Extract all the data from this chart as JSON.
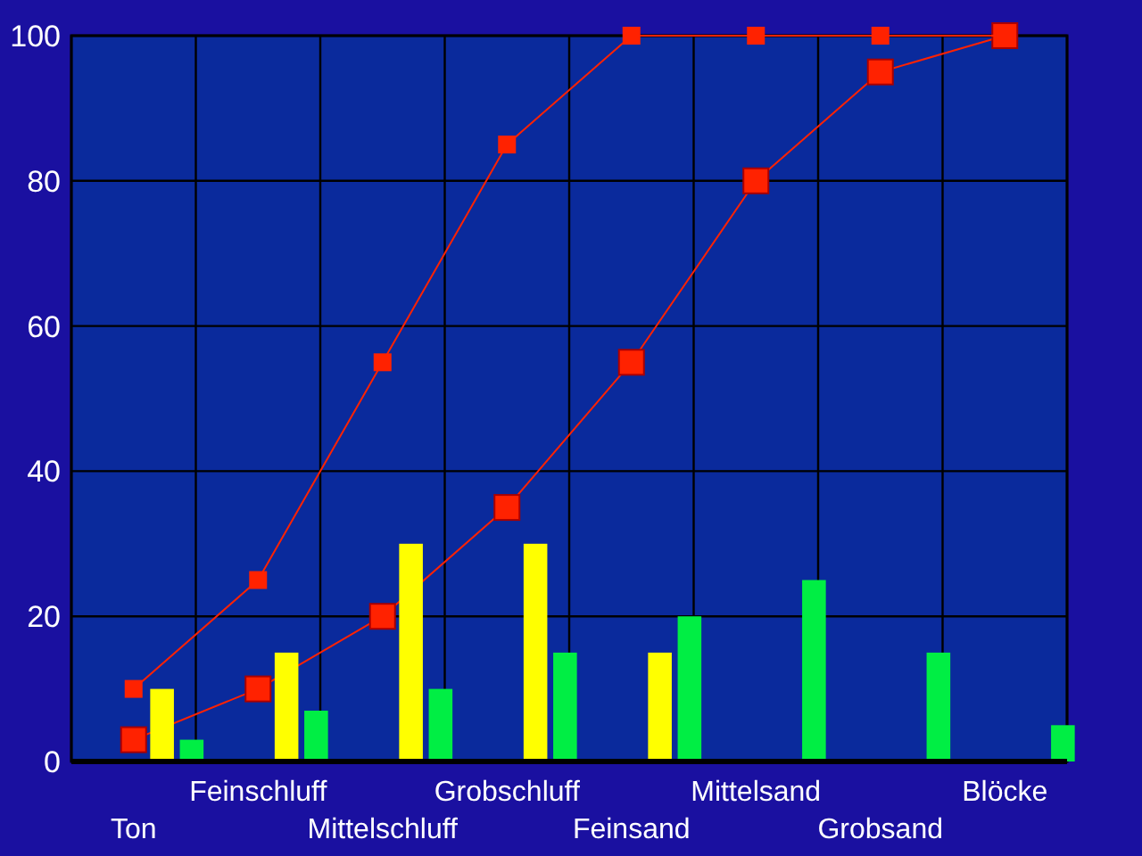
{
  "chart_data": {
    "type": "bar",
    "categories": [
      "Ton",
      "Feinschluff",
      "Mittelschluff",
      "Grobschluff",
      "Feinsand",
      "Mittelsand",
      "Grobsand",
      "Blöcke"
    ],
    "series": [
      {
        "type": "line",
        "color": "#ff2200",
        "values": [
          3,
          10,
          20,
          35,
          55,
          80,
          95,
          100
        ]
      },
      {
        "type": "line",
        "color": "#ff2200",
        "values": [
          10,
          25,
          55,
          85,
          100,
          100,
          100,
          100
        ]
      },
      {
        "color": "#ffff00",
        "values": [
          10,
          15,
          30,
          30,
          15,
          0,
          0,
          0
        ]
      },
      {
        "color": "#00ee44",
        "values": [
          3,
          7,
          10,
          15,
          20,
          25,
          15,
          5
        ]
      }
    ],
    "ylim": [
      0,
      100
    ],
    "yticks": [
      0,
      20,
      40,
      60,
      80,
      100
    ],
    "grid": true,
    "marker": "square",
    "line_style": "solid"
  }
}
